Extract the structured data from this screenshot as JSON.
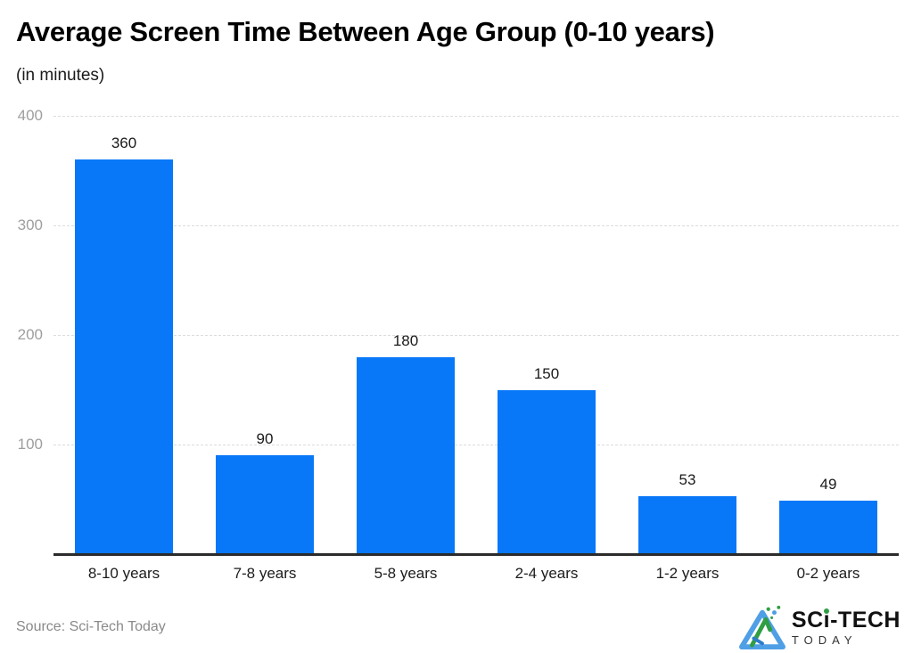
{
  "chart_data": {
    "type": "bar",
    "title": "Average Screen Time Between Age Group (0-10 years)",
    "subtitle": "(in minutes)",
    "categories": [
      "8-10 years",
      "7-8 years",
      "5-8 years",
      "2-4 years",
      "1-2 years",
      "0-2 years"
    ],
    "values": [
      360,
      90,
      180,
      150,
      53,
      49
    ],
    "xlabel": "",
    "ylabel": "minutes",
    "ylim": [
      0,
      400
    ],
    "y_ticks": [
      100,
      200,
      300,
      400
    ],
    "grid": true,
    "legend": "none",
    "bar_color": "#0878f8",
    "tick_label_color": "#9e9e9e",
    "value_label_color": "#1a1a1a"
  },
  "footer": {
    "source": "Source: Sci-Tech Today",
    "logo": {
      "part1": "SC",
      "part2": "i",
      "part3": "-TECH",
      "tagline": "TODAY"
    }
  }
}
